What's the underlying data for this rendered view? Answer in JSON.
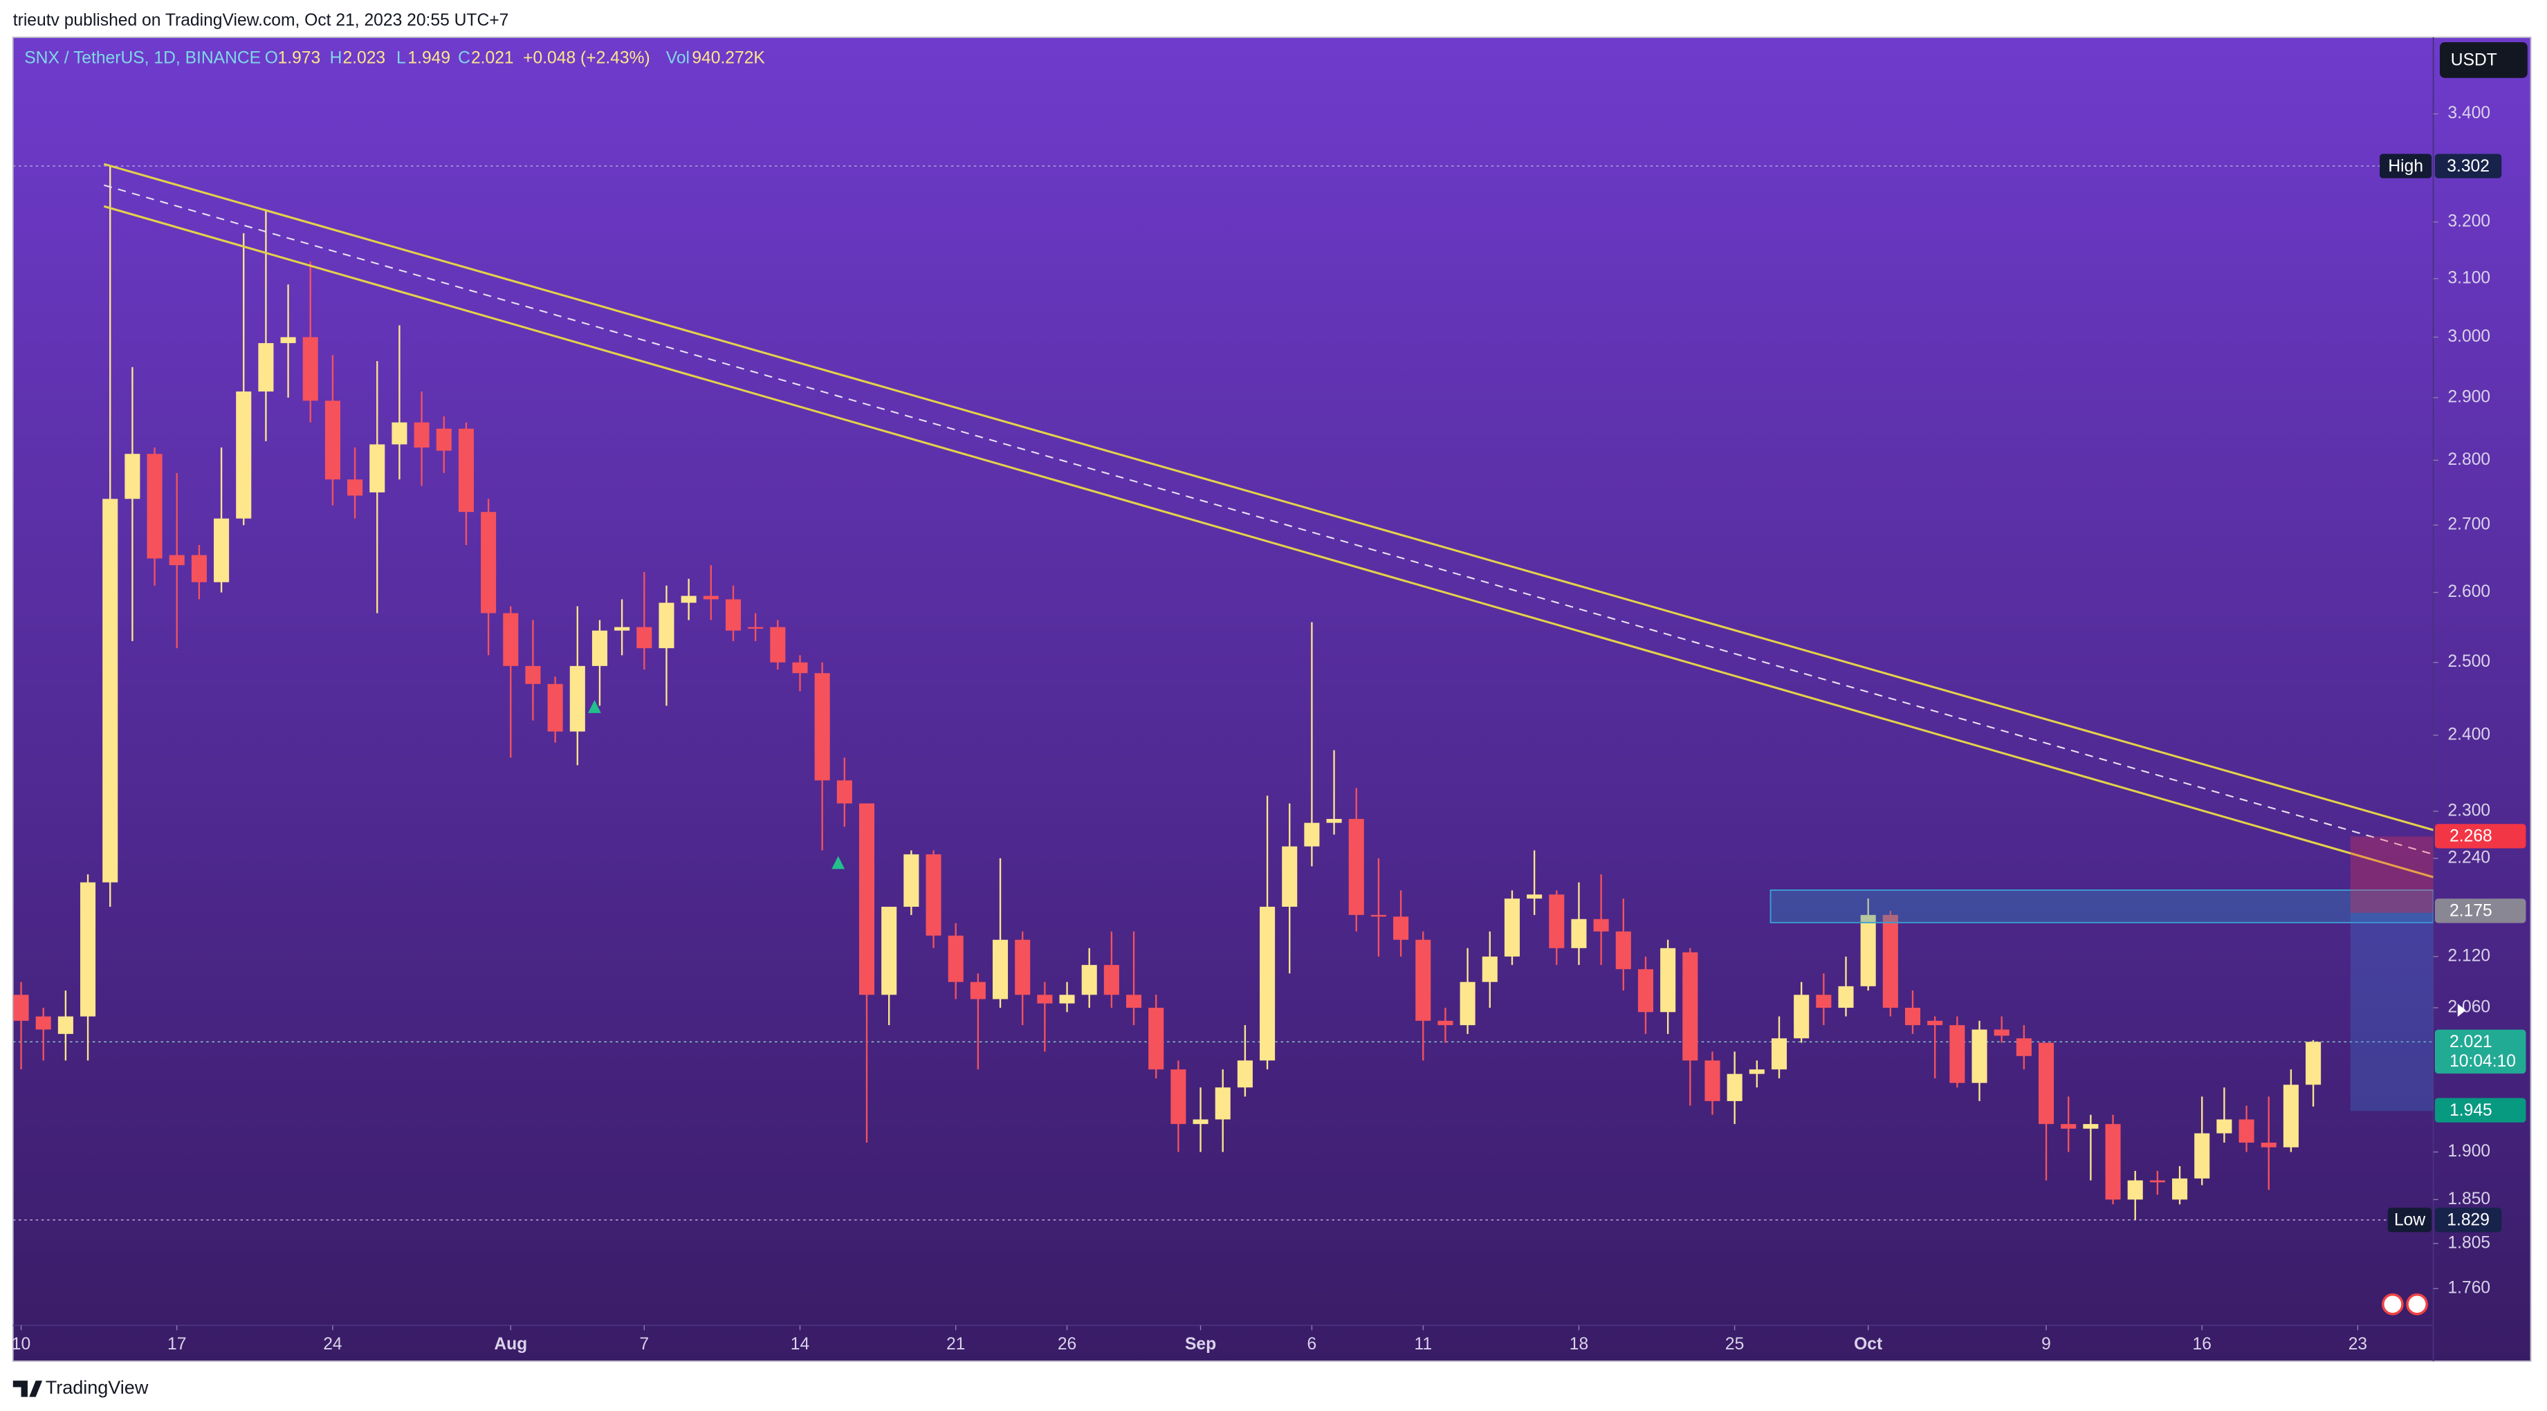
{
  "header": {
    "publisher": "trieutv published on TradingView.com, Oct 21, 2023 20:55 UTC+7",
    "logo": "TradingView"
  },
  "chart_data": {
    "type": "candlestick",
    "title": "SNX / TetherUS, 1D, BINANCE",
    "ohlc_letters": [
      "O",
      "H",
      "L",
      "C"
    ],
    "change_label": "+0.048 (+2.43%)",
    "volume_letter": "Vol",
    "volume_label": "940.272K",
    "currency": "USDT",
    "up_color": "#fde68c",
    "down_color": "#f5525c",
    "log": true,
    "x": [
      "Jul 10",
      "Jul 11",
      "Jul 12",
      "Jul 13",
      "Jul 14",
      "Jul 15",
      "Jul 16",
      "Jul 17",
      "Jul 18",
      "Jul 19",
      "Jul 20",
      "Jul 21",
      "Jul 22",
      "Jul 23",
      "Jul 24",
      "Jul 25",
      "Jul 26",
      "Jul 27",
      "Jul 28",
      "Jul 29",
      "Jul 30",
      "Jul 31",
      "Aug 1",
      "Aug 2",
      "Aug 3",
      "Aug 4",
      "Aug 5",
      "Aug 6",
      "Aug 7",
      "Aug 8",
      "Aug 9",
      "Aug 10",
      "Aug 11",
      "Aug 12",
      "Aug 13",
      "Aug 14",
      "Aug 15",
      "Aug 16",
      "Aug 17",
      "Aug 18",
      "Aug 19",
      "Aug 20",
      "Aug 21",
      "Aug 22",
      "Aug 23",
      "Aug 24",
      "Aug 25",
      "Aug 26",
      "Aug 27",
      "Aug 28",
      "Aug 29",
      "Aug 30",
      "Aug 31",
      "Sep 1",
      "Sep 2",
      "Sep 3",
      "Sep 4",
      "Sep 5",
      "Sep 6",
      "Sep 7",
      "Sep 8",
      "Sep 9",
      "Sep 10",
      "Sep 11",
      "Sep 12",
      "Sep 13",
      "Sep 14",
      "Sep 15",
      "Sep 16",
      "Sep 17",
      "Sep 18",
      "Sep 19",
      "Sep 20",
      "Sep 21",
      "Sep 22",
      "Sep 23",
      "Sep 24",
      "Sep 25",
      "Sep 26",
      "Sep 27",
      "Sep 28",
      "Sep 29",
      "Sep 30",
      "Oct 1",
      "Oct 2",
      "Oct 3",
      "Oct 4",
      "Oct 5",
      "Oct 6",
      "Oct 7",
      "Oct 8",
      "Oct 9",
      "Oct 10",
      "Oct 11",
      "Oct 12",
      "Oct 13",
      "Oct 14",
      "Oct 15",
      "Oct 16",
      "Oct 17",
      "Oct 18",
      "Oct 19",
      "Oct 20",
      "Oct 21"
    ],
    "open": [
      2.075,
      2.05,
      2.03,
      2.05,
      2.21,
      2.74,
      2.81,
      2.655,
      2.655,
      2.615,
      2.71,
      2.91,
      2.99,
      3.0,
      2.895,
      2.77,
      2.75,
      2.825,
      2.86,
      2.85,
      2.85,
      2.72,
      2.57,
      2.495,
      2.47,
      2.405,
      2.495,
      2.545,
      2.55,
      2.52,
      2.585,
      2.595,
      2.59,
      2.55,
      2.55,
      2.5,
      2.485,
      2.34,
      2.31,
      2.075,
      2.18,
      2.245,
      2.145,
      2.09,
      2.07,
      2.14,
      2.075,
      2.065,
      2.075,
      2.11,
      2.075,
      2.06,
      1.99,
      1.93,
      1.935,
      1.97,
      2.0,
      2.18,
      2.255,
      2.285,
      2.29,
      2.17,
      2.168,
      2.14,
      2.045,
      2.04,
      2.09,
      2.12,
      2.19,
      2.195,
      2.13,
      2.165,
      2.15,
      2.105,
      2.055,
      2.125,
      2.0,
      1.955,
      1.985,
      1.99,
      2.025,
      2.075,
      2.06,
      2.085,
      2.17,
      2.06,
      2.045,
      2.04,
      1.975,
      2.035,
      2.025,
      2.02,
      1.93,
      1.925,
      1.93,
      1.85,
      1.87,
      1.85,
      1.872,
      1.92,
      1.935,
      1.91,
      1.905,
      1.973
    ],
    "high": [
      2.09,
      2.06,
      2.08,
      2.22,
      3.302,
      2.95,
      2.82,
      2.78,
      2.67,
      2.82,
      3.18,
      3.22,
      3.09,
      3.13,
      2.97,
      2.82,
      2.96,
      3.02,
      2.91,
      2.87,
      2.86,
      2.74,
      2.58,
      2.56,
      2.48,
      2.58,
      2.56,
      2.59,
      2.63,
      2.61,
      2.62,
      2.64,
      2.61,
      2.57,
      2.56,
      2.51,
      2.5,
      2.37,
      2.31,
      2.18,
      2.25,
      2.25,
      2.16,
      2.1,
      2.24,
      2.15,
      2.09,
      2.09,
      2.13,
      2.15,
      2.15,
      2.075,
      2.0,
      1.97,
      1.99,
      2.04,
      2.32,
      2.31,
      2.557,
      2.38,
      2.33,
      2.24,
      2.2,
      2.15,
      2.06,
      2.13,
      2.15,
      2.2,
      2.25,
      2.2,
      2.21,
      2.22,
      2.19,
      2.12,
      2.14,
      2.13,
      2.01,
      2.01,
      2.0,
      2.05,
      2.09,
      2.1,
      2.12,
      2.19,
      2.175,
      2.08,
      2.05,
      2.05,
      2.045,
      2.05,
      2.04,
      2.02,
      1.96,
      1.94,
      1.94,
      1.88,
      1.88,
      1.885,
      1.96,
      1.97,
      1.95,
      1.96,
      1.99,
      2.023
    ],
    "low": [
      1.99,
      2.0,
      2.0,
      2.0,
      2.18,
      2.53,
      2.61,
      2.52,
      2.59,
      2.6,
      2.7,
      2.83,
      2.9,
      2.86,
      2.73,
      2.71,
      2.57,
      2.77,
      2.76,
      2.78,
      2.67,
      2.51,
      2.37,
      2.42,
      2.39,
      2.36,
      2.44,
      2.51,
      2.49,
      2.44,
      2.56,
      2.56,
      2.53,
      2.53,
      2.49,
      2.46,
      2.25,
      2.28,
      1.91,
      2.04,
      2.17,
      2.13,
      2.07,
      1.99,
      2.06,
      2.04,
      2.01,
      2.055,
      2.06,
      2.06,
      2.04,
      1.98,
      1.9,
      1.9,
      1.9,
      1.96,
      1.99,
      2.1,
      2.23,
      2.27,
      2.15,
      2.12,
      2.12,
      2.0,
      2.02,
      2.03,
      2.06,
      2.11,
      2.17,
      2.11,
      2.11,
      2.11,
      2.08,
      2.03,
      2.03,
      1.95,
      1.94,
      1.93,
      1.97,
      1.98,
      2.02,
      2.04,
      2.05,
      2.08,
      2.05,
      2.03,
      1.98,
      1.97,
      1.955,
      2.02,
      1.99,
      1.87,
      1.9,
      1.87,
      1.845,
      1.829,
      1.855,
      1.845,
      1.865,
      1.91,
      1.9,
      1.86,
      1.9,
      1.949
    ],
    "close": [
      2.045,
      2.035,
      2.05,
      2.21,
      2.74,
      2.81,
      2.65,
      2.64,
      2.615,
      2.71,
      2.91,
      2.99,
      3.0,
      2.895,
      2.77,
      2.745,
      2.825,
      2.86,
      2.82,
      2.815,
      2.72,
      2.57,
      2.495,
      2.47,
      2.405,
      2.495,
      2.545,
      2.55,
      2.52,
      2.585,
      2.595,
      2.59,
      2.545,
      2.548,
      2.5,
      2.485,
      2.34,
      2.31,
      2.075,
      2.18,
      2.245,
      2.145,
      2.09,
      2.07,
      2.14,
      2.075,
      2.065,
      2.075,
      2.11,
      2.075,
      2.06,
      1.99,
      1.93,
      1.935,
      1.97,
      2.0,
      2.18,
      2.255,
      2.285,
      2.29,
      2.17,
      2.168,
      2.14,
      2.045,
      2.04,
      2.09,
      2.12,
      2.19,
      2.195,
      2.13,
      2.165,
      2.15,
      2.105,
      2.055,
      2.13,
      2.0,
      1.955,
      1.985,
      1.99,
      2.025,
      2.075,
      2.06,
      2.085,
      2.17,
      2.06,
      2.04,
      2.04,
      1.975,
      2.035,
      2.028,
      2.005,
      1.93,
      1.925,
      1.93,
      1.85,
      1.87,
      1.868,
      1.872,
      1.92,
      1.935,
      1.91,
      1.905,
      1.973,
      2.021
    ],
    "ylim": [
      1.724,
      3.549
    ],
    "yticks": [
      {
        "value": 3.4,
        "label": "3.400"
      },
      {
        "value": 3.2,
        "label": "3.200"
      },
      {
        "value": 3.1,
        "label": "3.100"
      },
      {
        "value": 3.0,
        "label": "3.000"
      },
      {
        "value": 2.9,
        "label": "2.900"
      },
      {
        "value": 2.8,
        "label": "2.800"
      },
      {
        "value": 2.7,
        "label": "2.700"
      },
      {
        "value": 2.6,
        "label": "2.600"
      },
      {
        "value": 2.5,
        "label": "2.500"
      },
      {
        "value": 2.4,
        "label": "2.400"
      },
      {
        "value": 2.3,
        "label": "2.300"
      },
      {
        "value": 2.24,
        "label": "2.240"
      },
      {
        "value": 2.12,
        "label": "2.120"
      },
      {
        "value": 2.06,
        "label": "2.060"
      },
      {
        "value": 1.9,
        "label": "1.900"
      },
      {
        "value": 1.85,
        "label": "1.850"
      },
      {
        "value": 1.805,
        "label": "1.805"
      },
      {
        "value": 1.76,
        "label": "1.760"
      }
    ],
    "xticks": [
      {
        "value": "Jul 10",
        "label": "10"
      },
      {
        "value": "Jul 17",
        "label": "17"
      },
      {
        "value": "Jul 24",
        "label": "24"
      },
      {
        "value": "Aug 1",
        "label": "Aug"
      },
      {
        "value": "Aug 7",
        "label": "7"
      },
      {
        "value": "Aug 14",
        "label": "14"
      },
      {
        "value": "Aug 21",
        "label": "21"
      },
      {
        "value": "Aug 26",
        "label": "26"
      },
      {
        "value": "Sep 1",
        "label": "Sep"
      },
      {
        "value": "Sep 6",
        "label": "6"
      },
      {
        "value": "Sep 11",
        "label": "11"
      },
      {
        "value": "Sep 18",
        "label": "18"
      },
      {
        "value": "Sep 25",
        "label": "25"
      },
      {
        "value": "Oct 1",
        "label": "Oct"
      },
      {
        "value": "Oct 9",
        "label": "9"
      },
      {
        "value": "Oct 16",
        "label": "16"
      },
      {
        "value": "Oct 23",
        "label": "23"
      }
    ],
    "high_marker": {
      "label": "High",
      "value": 3.302
    },
    "low_marker": {
      "label": "Low",
      "value": 1.829
    },
    "levels": [
      {
        "value": 2.268,
        "color": "#f23645"
      },
      {
        "value": 2.175,
        "color": "#8a8794"
      },
      {
        "value": 1.945,
        "color": "#089981"
      }
    ],
    "last_price": {
      "countdown": "10:04:10",
      "color": "#22ab94"
    }
  }
}
